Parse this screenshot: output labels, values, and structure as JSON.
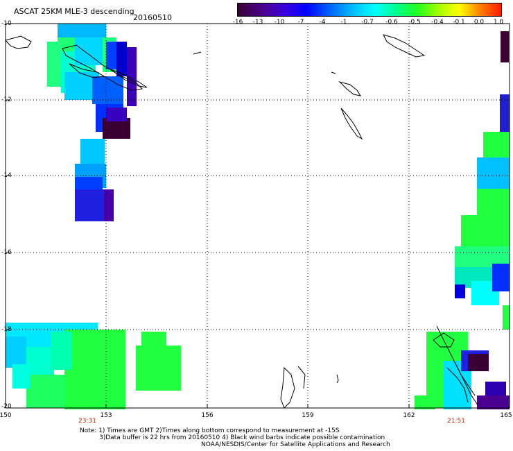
{
  "header": {
    "title": "ASCAT 25KM MLE-3 descending",
    "date": "20160510"
  },
  "colorbar": {
    "labels": [
      "-16",
      "-13",
      "-10",
      "-7",
      "-4",
      "-1",
      "-0.7",
      "-0.6",
      "-0.5",
      "-0.4",
      "-0.1",
      "0.0",
      "1.0"
    ],
    "colors": [
      "#3a0033",
      "#5a00a8",
      "#3b00e0",
      "#0026ff",
      "#0078ff",
      "#00b8ff",
      "#00eaff",
      "#00ffb0",
      "#00ff40",
      "#70ff00",
      "#ffff00",
      "#ff9000",
      "#ff2000"
    ]
  },
  "map": {
    "lat_labels": [
      "-10",
      "-12",
      "-14",
      "-16",
      "-18",
      "-20"
    ],
    "lon_labels": [
      "150",
      "153",
      "156",
      "159",
      "162",
      "165"
    ],
    "time_labels": [
      "23:31",
      "21:51"
    ],
    "lat_range": [
      -20,
      -10
    ],
    "lon_range": [
      150,
      165
    ]
  },
  "footer": {
    "note_line1": "Note: 1) Times are GMT 2)Times along bottom correspond to measurement at -15S",
    "note_line2": "3)Data buffer is 22 hrs from 20160510 4) Black wind barbs indicate possible contamination",
    "note_line3": "NOAA/NESDIS/Center for Satellite Applications and Research"
  }
}
